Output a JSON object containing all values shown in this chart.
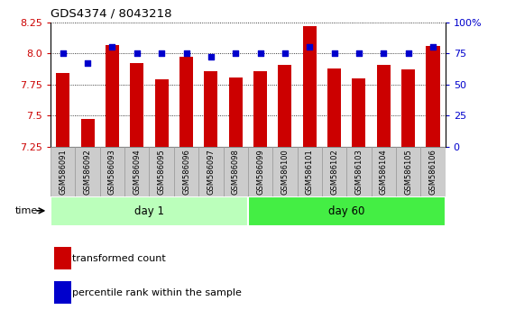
{
  "title": "GDS4374 / 8043218",
  "samples": [
    "GSM586091",
    "GSM586092",
    "GSM586093",
    "GSM586094",
    "GSM586095",
    "GSM586096",
    "GSM586097",
    "GSM586098",
    "GSM586099",
    "GSM586100",
    "GSM586101",
    "GSM586102",
    "GSM586103",
    "GSM586104",
    "GSM586105",
    "GSM586106"
  ],
  "bar_values": [
    7.84,
    7.47,
    8.07,
    7.92,
    7.79,
    7.97,
    7.86,
    7.81,
    7.86,
    7.91,
    8.22,
    7.88,
    7.8,
    7.91,
    7.87,
    8.06
  ],
  "dot_values": [
    75,
    67,
    80,
    75,
    75,
    75,
    72,
    75,
    75,
    75,
    80,
    75,
    75,
    75,
    75,
    80
  ],
  "ylim_left": [
    7.25,
    8.25
  ],
  "ylim_right": [
    0,
    100
  ],
  "yticks_left": [
    7.25,
    7.5,
    7.75,
    8.0,
    8.25
  ],
  "yticks_right": [
    0,
    25,
    50,
    75,
    100
  ],
  "ytick_labels_right": [
    "0",
    "25",
    "50",
    "75",
    "100%"
  ],
  "bar_color": "#cc0000",
  "dot_color": "#0000cc",
  "bar_width": 0.55,
  "day1_group": [
    0,
    7
  ],
  "day60_group": [
    8,
    15
  ],
  "day1_label": "day 1",
  "day60_label": "day 60",
  "day1_color": "#bbffbb",
  "day60_color": "#44ee44",
  "sample_box_color": "#cccccc",
  "sample_box_edge": "#999999",
  "legend_bar_label": "transformed count",
  "legend_dot_label": "percentile rank within the sample",
  "baseline": 7.25,
  "fig_width": 5.61,
  "fig_height": 3.54,
  "dpi": 100
}
